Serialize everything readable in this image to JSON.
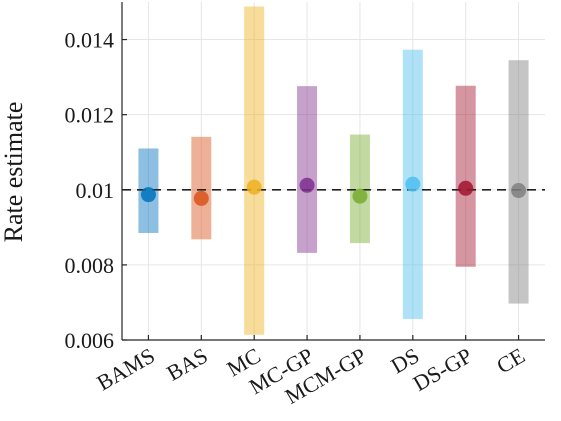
{
  "chart_data": {
    "type": "errorbar",
    "title": "",
    "xlabel": "",
    "ylabel": "Rate estimate",
    "ylim": [
      0.006,
      0.015
    ],
    "yticks": [
      0.006,
      0.008,
      0.01,
      0.012,
      0.014
    ],
    "ytick_labels": [
      "0.006",
      "0.008",
      "0.01",
      "0.012",
      "0.014"
    ],
    "grid": true,
    "reference_line": 0.01,
    "categories": [
      "BAMS",
      "BAS",
      "MC",
      "MC-GP",
      "MCM-GP",
      "DS",
      "DS-GP",
      "CE"
    ],
    "series": [
      {
        "point": 0.00987,
        "low": 0.00885,
        "high": 0.0111,
        "color": "#0072BD"
      },
      {
        "point": 0.00977,
        "low": 0.00868,
        "high": 0.01141,
        "color": "#D95319"
      },
      {
        "point": 0.01007,
        "low": 0.00614,
        "high": 0.01488,
        "color": "#EDB120"
      },
      {
        "point": 0.01012,
        "low": 0.00832,
        "high": 0.01276,
        "color": "#7E2F8E"
      },
      {
        "point": 0.00983,
        "low": 0.00858,
        "high": 0.01147,
        "color": "#77AC30"
      },
      {
        "point": 0.01015,
        "low": 0.00656,
        "high": 0.01373,
        "color": "#4DBEEE"
      },
      {
        "point": 0.01004,
        "low": 0.00795,
        "high": 0.01277,
        "color": "#A2142F"
      },
      {
        "point": 0.00998,
        "low": 0.00697,
        "high": 0.01345,
        "color": "#7F7F7F"
      }
    ]
  }
}
